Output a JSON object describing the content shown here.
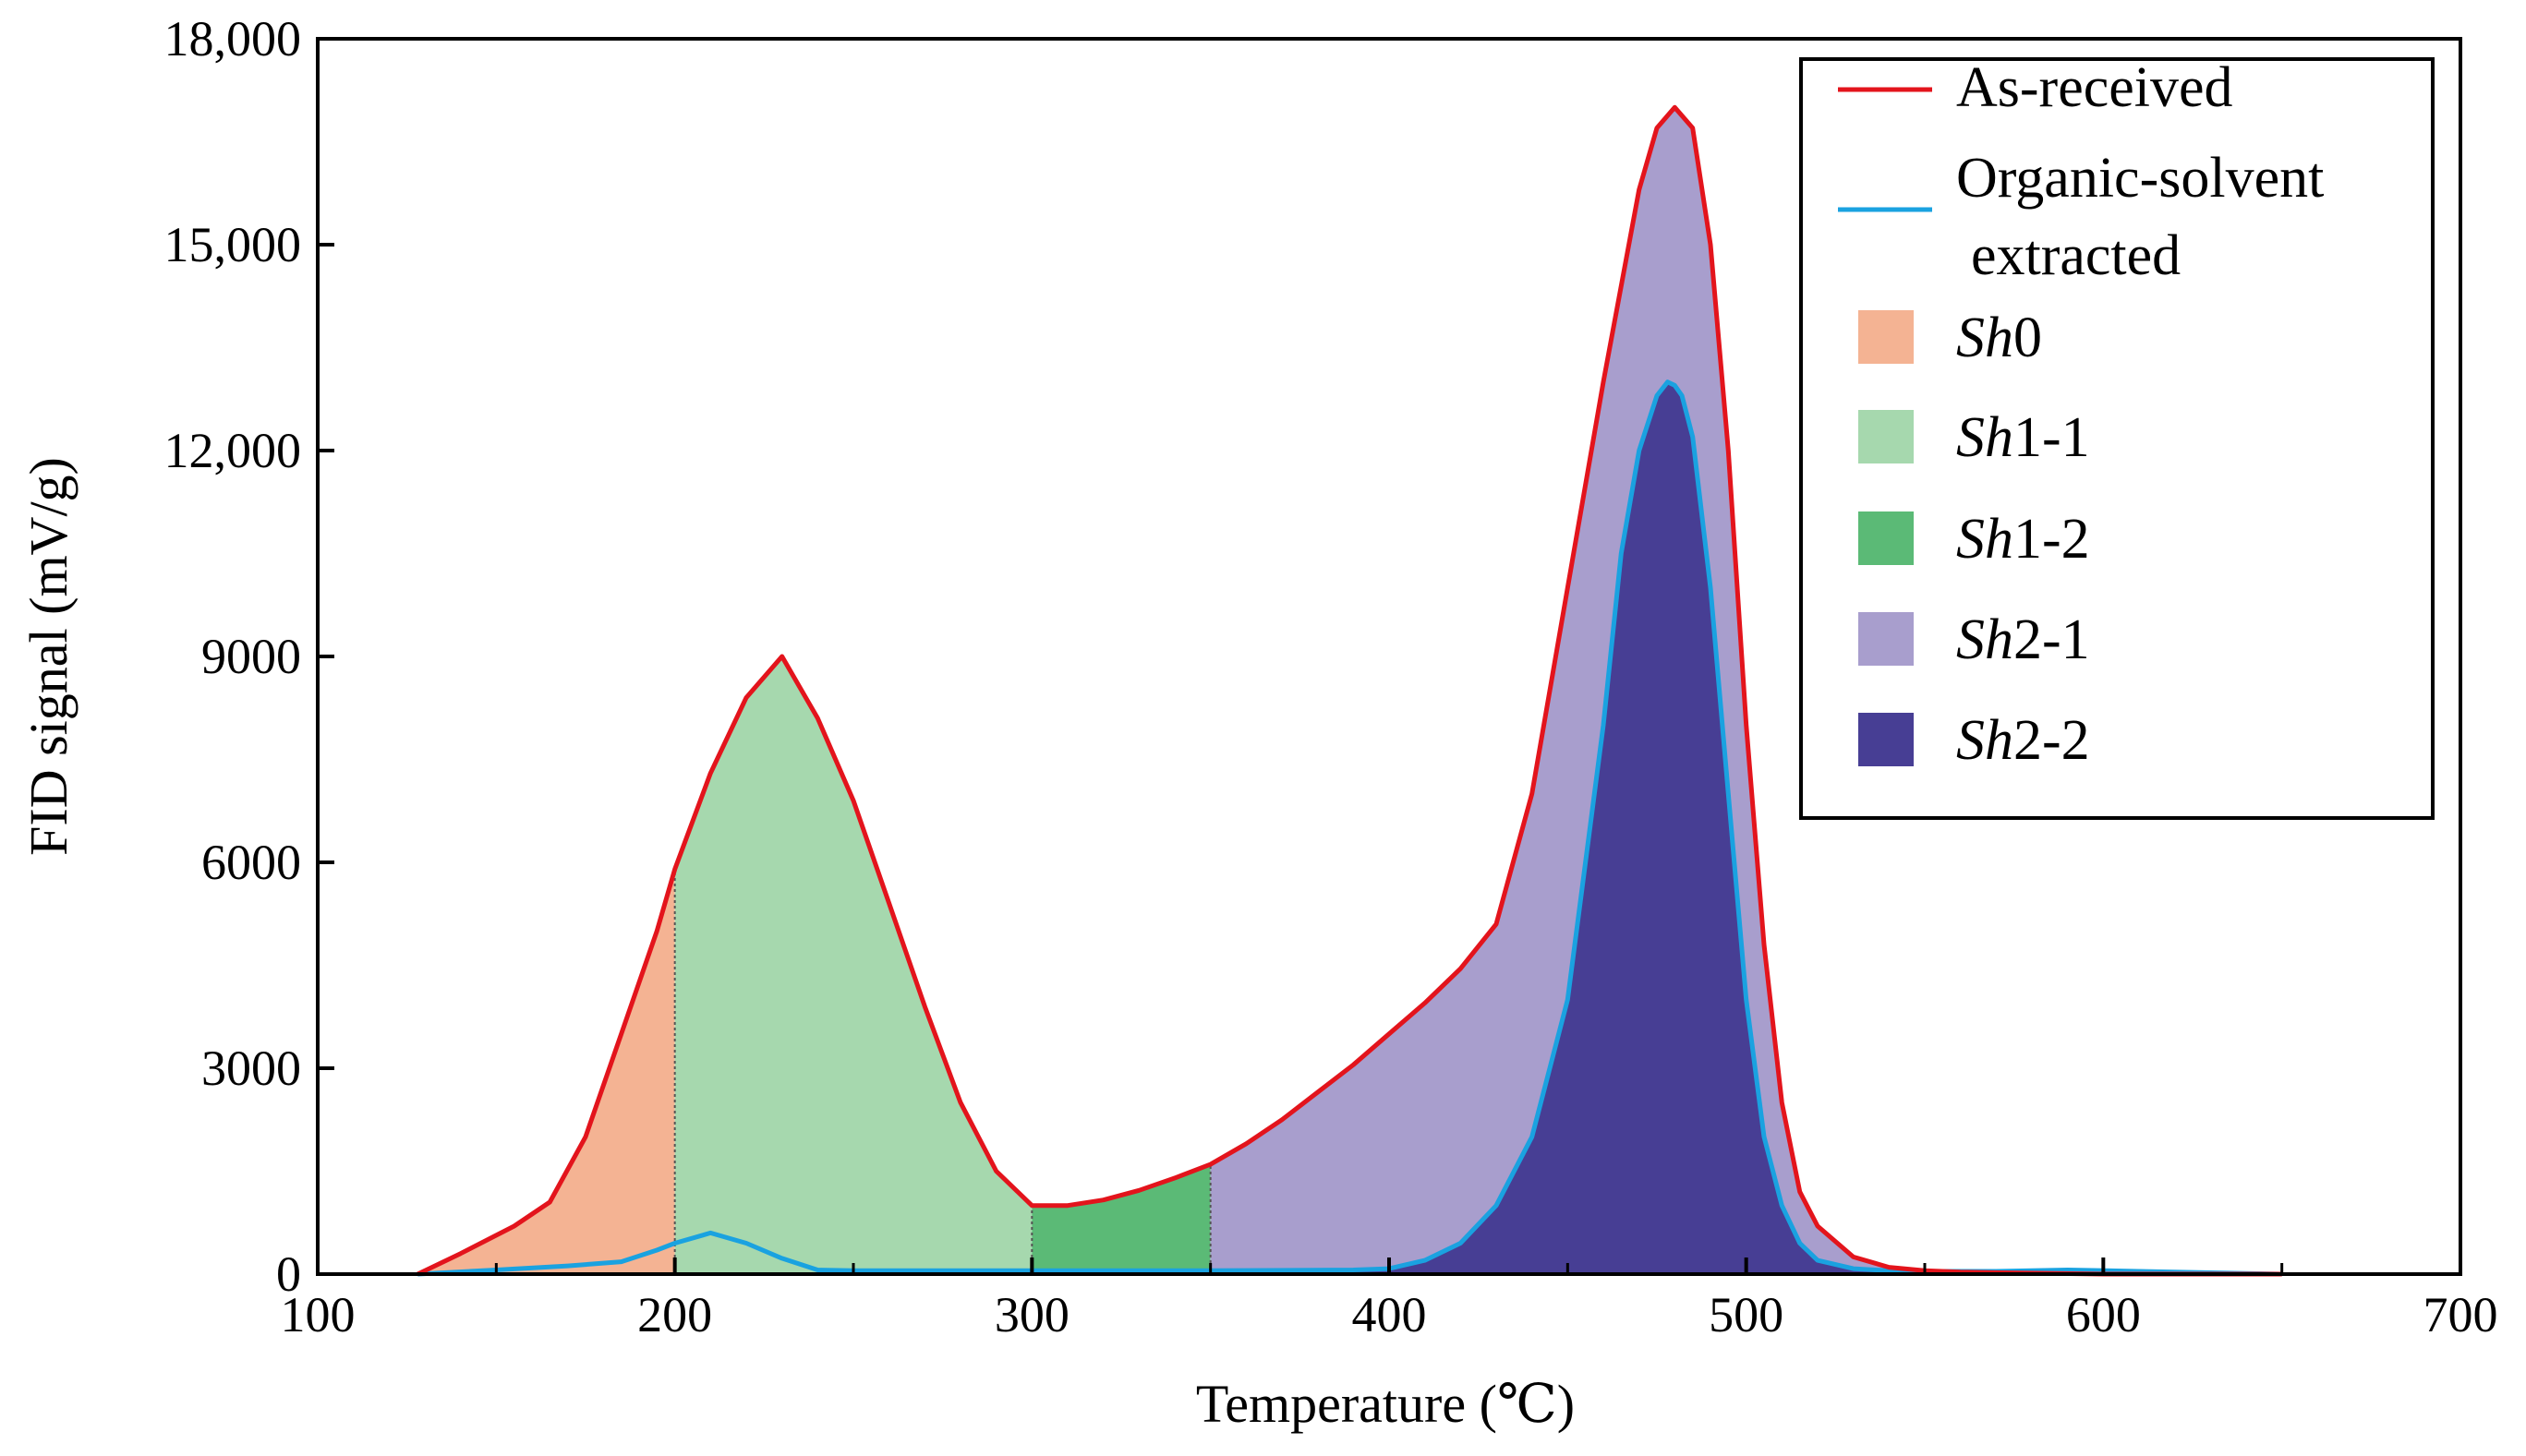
{
  "chart_data": {
    "type": "area",
    "xlabel": "Temperature (℃)",
    "ylabel": "FID signal (mV/g)",
    "xlim": [
      100,
      700
    ],
    "ylim": [
      0,
      18000
    ],
    "x_ticks": [
      100,
      200,
      300,
      400,
      500,
      600,
      700
    ],
    "x_tick_labels": [
      "100",
      "200",
      "300",
      "400",
      "500",
      "600",
      "700"
    ],
    "x_minor_ticks": [
      150,
      250,
      350,
      450,
      550,
      650
    ],
    "y_ticks": [
      0,
      3000,
      6000,
      9000,
      12000,
      15000,
      18000
    ],
    "y_tick_labels": [
      "0",
      "3000",
      "6000",
      "9000",
      "12,000",
      "15,000",
      "18,000"
    ],
    "grid": false,
    "legend_position": "top-right",
    "series": [
      {
        "name": "As-received",
        "color": "#e3141c",
        "x": [
          128,
          140,
          155,
          165,
          175,
          185,
          195,
          200,
          210,
          220,
          230,
          240,
          250,
          260,
          270,
          280,
          290,
          300,
          310,
          320,
          330,
          340,
          350,
          360,
          370,
          380,
          390,
          400,
          410,
          420,
          430,
          440,
          450,
          460,
          470,
          475,
          480,
          485,
          490,
          495,
          500,
          505,
          510,
          515,
          520,
          530,
          540,
          550,
          560,
          600,
          650
        ],
        "y": [
          0,
          300,
          700,
          1050,
          2000,
          3500,
          5000,
          5900,
          7300,
          8400,
          9000,
          8100,
          6900,
          5400,
          3900,
          2500,
          1500,
          1000,
          1000,
          1080,
          1220,
          1400,
          1600,
          1900,
          2250,
          2650,
          3050,
          3500,
          3950,
          4450,
          5100,
          7000,
          10000,
          13000,
          15800,
          16700,
          17000,
          16700,
          15000,
          12000,
          8000,
          4800,
          2500,
          1200,
          700,
          250,
          100,
          50,
          30,
          0,
          0
        ]
      },
      {
        "name": "Organic-solvent extracted",
        "color": "#1aa2e0",
        "x": [
          128,
          150,
          170,
          185,
          195,
          200,
          210,
          220,
          230,
          240,
          250,
          300,
          350,
          390,
          400,
          410,
          420,
          430,
          440,
          450,
          460,
          465,
          470,
          475,
          478,
          480,
          482,
          485,
          490,
          495,
          500,
          505,
          510,
          515,
          520,
          530,
          540,
          550,
          570,
          590,
          610,
          630,
          650
        ],
        "y": [
          0,
          60,
          120,
          180,
          350,
          450,
          600,
          450,
          230,
          60,
          50,
          50,
          50,
          60,
          80,
          200,
          450,
          1000,
          2000,
          4000,
          8000,
          10500,
          12000,
          12800,
          13000,
          12950,
          12800,
          12200,
          10000,
          7000,
          4000,
          2000,
          1000,
          450,
          200,
          80,
          50,
          40,
          40,
          60,
          40,
          20,
          0
        ]
      }
    ],
    "regions": [
      {
        "name": "Sh0",
        "name_italic": "Sh",
        "name_suffix": "0",
        "x_range": [
          128,
          200
        ],
        "color": "#f4b393",
        "fill_to": "baseline"
      },
      {
        "name": "Sh1-1",
        "name_italic": "Sh",
        "name_suffix": "1-1",
        "x_range": [
          200,
          300
        ],
        "color": "#a6d8ae",
        "fill_to": "baseline"
      },
      {
        "name": "Sh1-2",
        "name_italic": "Sh",
        "name_suffix": "1-2",
        "x_range": [
          300,
          350
        ],
        "color": "#5bba76",
        "fill_to": "baseline"
      },
      {
        "name": "Sh2-1",
        "name_italic": "Sh",
        "name_suffix": "2-1",
        "x_range": [
          350,
          650
        ],
        "color": "#a89ecd",
        "fill_to": "baseline"
      },
      {
        "name": "Sh2-2",
        "name_italic": "Sh",
        "name_suffix": "2-2",
        "x_range": [
          390,
          650
        ],
        "color": "#473e94",
        "fill_to": "baseline",
        "under_series": "Organic-solvent extracted"
      }
    ],
    "legend": {
      "lines": [
        {
          "label_lines": [
            "As-received"
          ],
          "color": "#e3141c"
        },
        {
          "label_lines": [
            "Organic-solvent",
            "extracted"
          ],
          "color": "#1aa2e0"
        }
      ]
    }
  }
}
